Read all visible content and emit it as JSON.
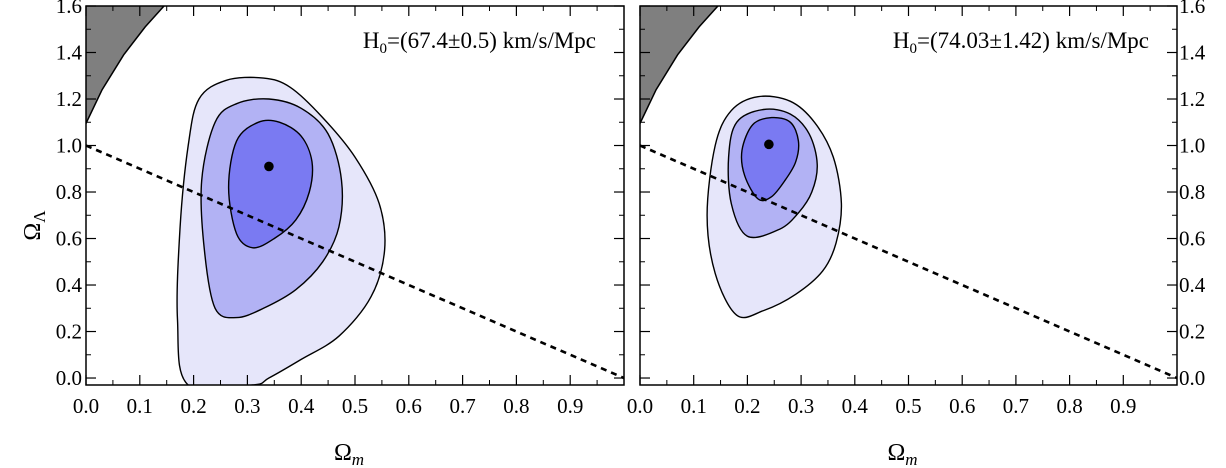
{
  "chart_data": [
    {
      "type": "contour",
      "annotation": "H<sub>0</sub>=(67.4±0.5) km/s/Mpc",
      "annotation_parts": [
        "H",
        "0",
        "=(67.4±0.5) km/s/Mpc"
      ],
      "xlabel": [
        "Ω",
        "m"
      ],
      "ylabel": [
        "Ω",
        "Λ"
      ],
      "xlim": [
        0.0,
        1.0
      ],
      "ylim": [
        -0.03,
        1.6
      ],
      "xticks": [
        "0.0",
        "0.1",
        "0.2",
        "0.3",
        "0.4",
        "0.5",
        "0.6",
        "0.7",
        "0.8",
        "0.9"
      ],
      "yticks": [
        "0.0",
        "0.2",
        "0.4",
        "0.6",
        "0.8",
        "1.0",
        "1.2",
        "1.4",
        "1.6"
      ],
      "y_axis_side": "left",
      "best_fit": [
        0.34,
        0.91
      ],
      "flat_universe_line": [
        [
          0.0,
          1.0
        ],
        [
          1.0,
          0.0
        ]
      ],
      "contours": [
        {
          "level": "3-sigma",
          "color": "#e6e6fa",
          "points": [
            [
              0.19,
              -0.03
            ],
            [
              0.17,
              0.25
            ],
            [
              0.175,
              0.65
            ],
            [
              0.19,
              1.0
            ],
            [
              0.21,
              1.2
            ],
            [
              0.26,
              1.28
            ],
            [
              0.33,
              1.29
            ],
            [
              0.38,
              1.25
            ],
            [
              0.44,
              1.12
            ],
            [
              0.5,
              0.95
            ],
            [
              0.545,
              0.75
            ],
            [
              0.555,
              0.55
            ],
            [
              0.53,
              0.35
            ],
            [
              0.47,
              0.18
            ],
            [
              0.4,
              0.08
            ],
            [
              0.34,
              0.0
            ],
            [
              0.31,
              -0.03
            ]
          ]
        },
        {
          "level": "2-sigma",
          "color": "#b2b2f4",
          "points": [
            [
              0.24,
              0.3
            ],
            [
              0.22,
              0.55
            ],
            [
              0.215,
              0.85
            ],
            [
              0.24,
              1.1
            ],
            [
              0.28,
              1.18
            ],
            [
              0.34,
              1.2
            ],
            [
              0.4,
              1.16
            ],
            [
              0.45,
              1.05
            ],
            [
              0.475,
              0.85
            ],
            [
              0.47,
              0.65
            ],
            [
              0.44,
              0.5
            ],
            [
              0.39,
              0.38
            ],
            [
              0.33,
              0.3
            ],
            [
              0.28,
              0.26
            ]
          ]
        },
        {
          "level": "1-sigma",
          "color": "#7a7af2",
          "points": [
            [
              0.28,
              0.62
            ],
            [
              0.265,
              0.82
            ],
            [
              0.28,
              1.02
            ],
            [
              0.32,
              1.1
            ],
            [
              0.36,
              1.1
            ],
            [
              0.4,
              1.04
            ],
            [
              0.42,
              0.93
            ],
            [
              0.415,
              0.8
            ],
            [
              0.39,
              0.68
            ],
            [
              0.35,
              0.6
            ],
            [
              0.31,
              0.56
            ]
          ]
        }
      ],
      "excluded_region": {
        "color": "#7f7f7f",
        "boundary": [
          [
            0.0,
            1.095
          ],
          [
            0.03,
            1.24
          ],
          [
            0.07,
            1.39
          ],
          [
            0.11,
            1.51
          ],
          [
            0.145,
            1.6
          ]
        ]
      }
    },
    {
      "type": "contour",
      "annotation_parts": [
        "H",
        "0",
        "=(74.03±1.42) km/s/Mpc"
      ],
      "xlabel": [
        "Ω",
        "m"
      ],
      "ylabel": [
        "Ω",
        "Λ"
      ],
      "xlim": [
        0.0,
        1.0
      ],
      "ylim": [
        -0.03,
        1.6
      ],
      "xticks": [
        "0.0",
        "0.1",
        "0.2",
        "0.3",
        "0.4",
        "0.5",
        "0.6",
        "0.7",
        "0.8",
        "0.9"
      ],
      "yticks": [
        "0.0",
        "0.2",
        "0.4",
        "0.6",
        "0.8",
        "1.0",
        "1.2",
        "1.4",
        "1.6"
      ],
      "y_axis_side": "right",
      "best_fit": [
        0.24,
        1.005
      ],
      "flat_universe_line": [
        [
          0.0,
          1.0
        ],
        [
          1.0,
          0.0
        ]
      ],
      "contours": [
        {
          "level": "3-sigma",
          "color": "#e6e6fa",
          "points": [
            [
              0.18,
              0.27
            ],
            [
              0.14,
              0.45
            ],
            [
              0.125,
              0.7
            ],
            [
              0.14,
              1.0
            ],
            [
              0.17,
              1.15
            ],
            [
              0.22,
              1.21
            ],
            [
              0.28,
              1.19
            ],
            [
              0.325,
              1.1
            ],
            [
              0.36,
              0.95
            ],
            [
              0.375,
              0.75
            ],
            [
              0.365,
              0.58
            ],
            [
              0.34,
              0.46
            ],
            [
              0.29,
              0.36
            ],
            [
              0.23,
              0.29
            ]
          ]
        },
        {
          "level": "2-sigma",
          "color": "#b2b2f4",
          "points": [
            [
              0.2,
              0.61
            ],
            [
              0.17,
              0.75
            ],
            [
              0.165,
              0.95
            ],
            [
              0.18,
              1.1
            ],
            [
              0.23,
              1.155
            ],
            [
              0.28,
              1.135
            ],
            [
              0.315,
              1.05
            ],
            [
              0.33,
              0.92
            ],
            [
              0.32,
              0.8
            ],
            [
              0.295,
              0.71
            ],
            [
              0.26,
              0.64
            ]
          ]
        },
        {
          "level": "1-sigma",
          "color": "#7a7af2",
          "points": [
            [
              0.22,
              0.77
            ],
            [
              0.195,
              0.87
            ],
            [
              0.19,
              0.98
            ],
            [
              0.21,
              1.09
            ],
            [
              0.245,
              1.12
            ],
            [
              0.28,
              1.1
            ],
            [
              0.295,
              1.02
            ],
            [
              0.29,
              0.93
            ],
            [
              0.27,
              0.85
            ],
            [
              0.245,
              0.78
            ]
          ]
        }
      ],
      "excluded_region": {
        "color": "#7f7f7f",
        "boundary": [
          [
            0.0,
            1.095
          ],
          [
            0.03,
            1.24
          ],
          [
            0.07,
            1.39
          ],
          [
            0.11,
            1.51
          ],
          [
            0.145,
            1.6
          ]
        ]
      }
    }
  ]
}
